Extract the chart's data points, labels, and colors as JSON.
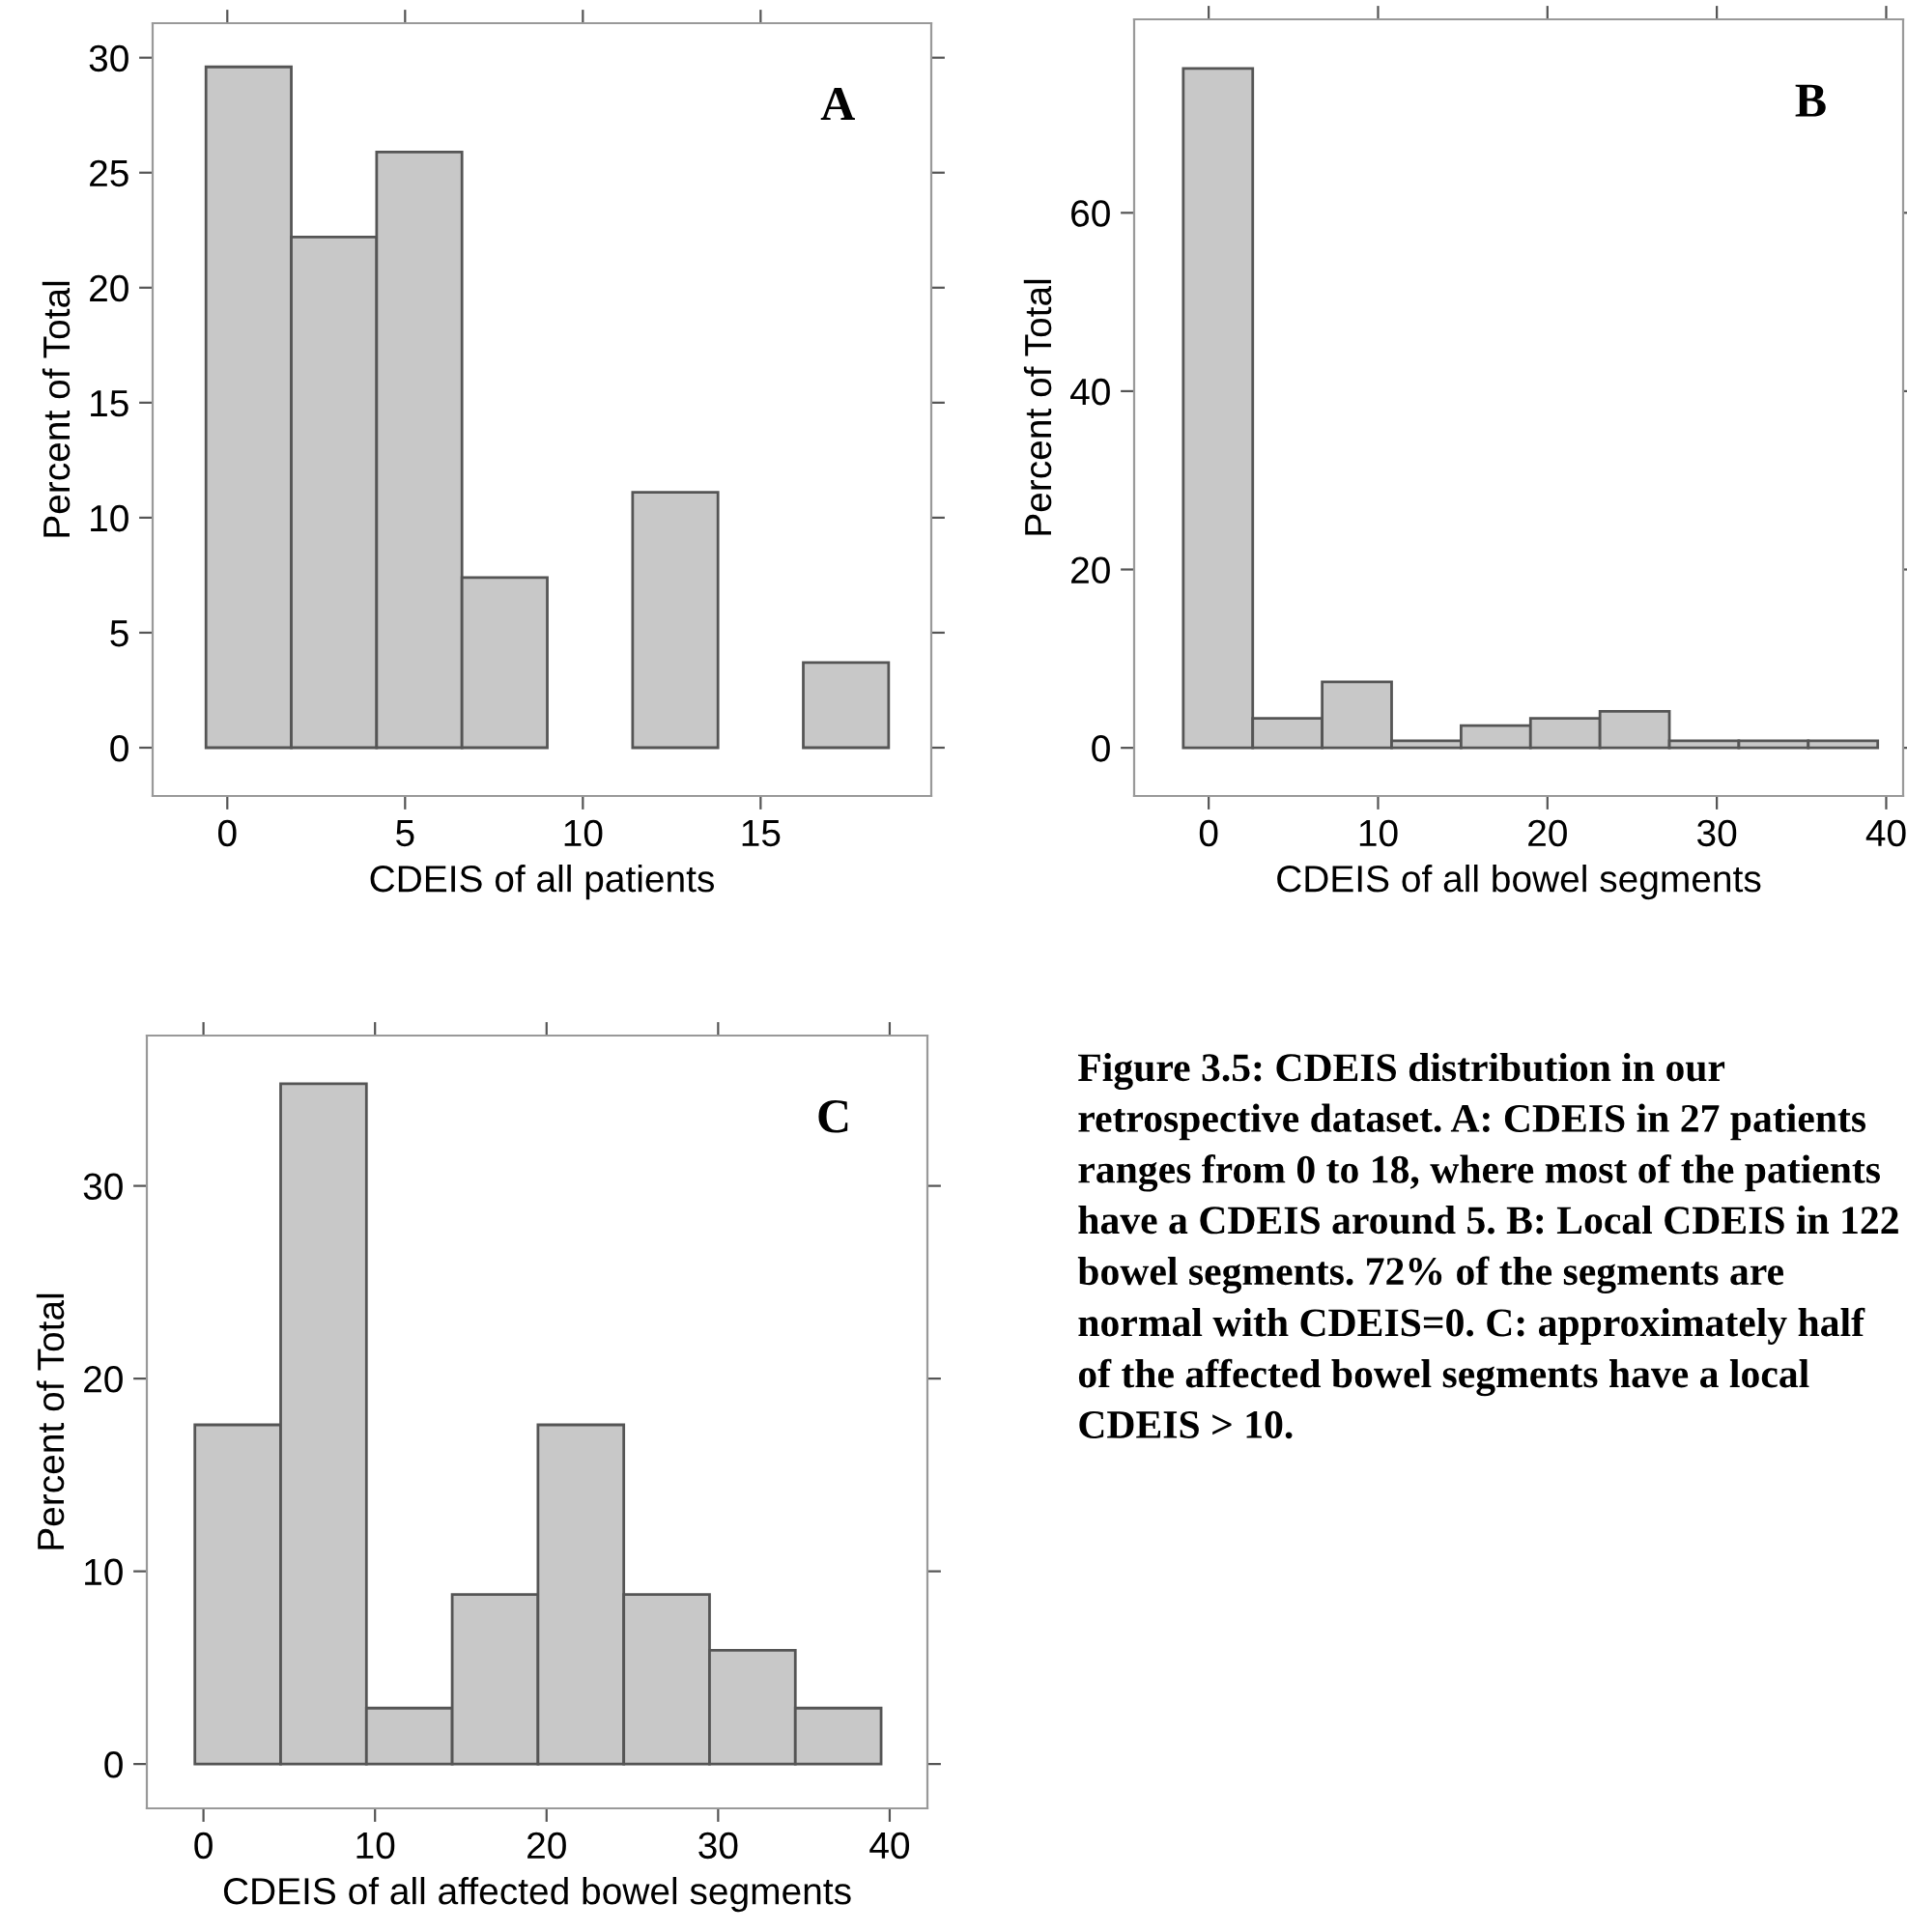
{
  "chart_data": [
    {
      "type": "histogram",
      "xlabel": "CDEIS of all patients",
      "ylabel": "Percent of Total",
      "color": "#c8c8c8",
      "bins": [
        -0.6,
        1.8,
        4.2,
        6.6,
        9,
        11.4,
        13.8,
        16.2,
        18.6
      ],
      "values": [
        29.6,
        22.2,
        25.9,
        7.4,
        0,
        11.1,
        0,
        3.7
      ],
      "xlim": [
        -2.1,
        19.8
      ],
      "xticks": [
        0,
        5,
        10,
        15
      ],
      "ylim": [
        -2.1,
        31.5
      ],
      "yticks": [
        0,
        5,
        10,
        15,
        20,
        25,
        30
      ],
      "grid": false,
      "annotations": [
        "A"
      ]
    },
    {
      "type": "histogram",
      "xlabel": "CDEIS of all bowel segments",
      "ylabel": "Percent of Total",
      "color": "#c8c8c8",
      "bins": [
        -1.5,
        2.6,
        6.7,
        10.8,
        14.9,
        19,
        23.1,
        27.2,
        31.3,
        35.4,
        39.5
      ],
      "values": [
        76.2,
        3.3,
        7.4,
        0.8,
        2.5,
        3.3,
        4.1,
        0.8,
        0.8,
        0.8
      ],
      "xlim": [
        -4.4,
        41
      ],
      "xticks": [
        0,
        10,
        20,
        30,
        40
      ],
      "ylim": [
        -5.4,
        81.7
      ],
      "yticks": [
        0,
        20,
        40,
        60
      ],
      "grid": false,
      "annotations": [
        "B"
      ]
    },
    {
      "type": "histogram",
      "xlabel": "CDEIS of all affected bowel segments",
      "ylabel": "Percent of Total",
      "color": "#c8c8c8",
      "bins": [
        -0.5,
        4.5,
        9.5,
        14.5,
        19.5,
        24.5,
        29.5,
        34.5,
        39.5
      ],
      "values": [
        17.6,
        35.3,
        2.9,
        8.8,
        17.6,
        8.8,
        5.9,
        2.9
      ],
      "xlim": [
        -3.3,
        42.2
      ],
      "xticks": [
        0,
        10,
        20,
        30,
        40
      ],
      "ylim": [
        -2.3,
        37.8
      ],
      "yticks": [
        0,
        10,
        20,
        30
      ],
      "grid": false,
      "annotations": [
        "C",
        "Figure 3.5: CDEIS distribution in our retrospective dataset. A: CDEIS in 27 patients ranges from 0 to 18, where most of the patients have a CDEIS around 5. B: Local CDEIS in 122 bowel segments. 72% of the segments are normal with CDEIS=0. C: approximately half of the affected bowel segments have a local CDEIS > 10."
      ]
    }
  ]
}
